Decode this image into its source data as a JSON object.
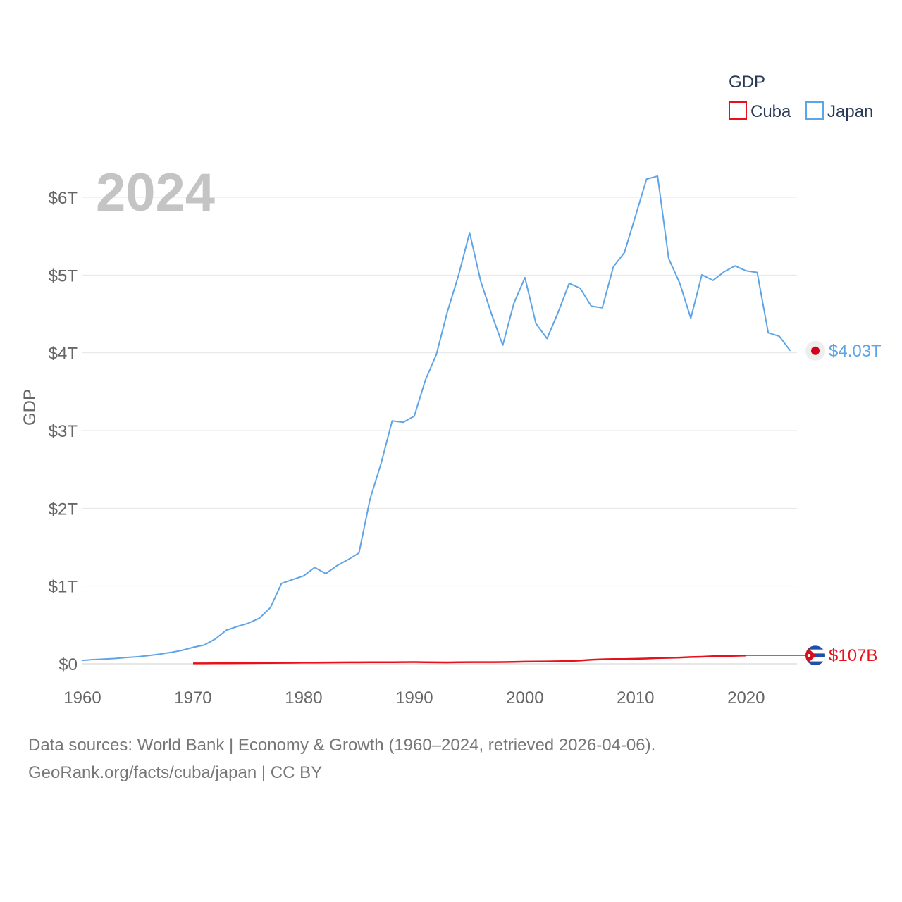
{
  "chart_data": {
    "type": "line",
    "title": "GDP",
    "big_year": "2024",
    "ylabel": "GDP",
    "xlabel": "",
    "xlim": [
      1960,
      2024.6
    ],
    "ylim": [
      0,
      6.3
    ],
    "y_unit": "trillion USD",
    "y_ticks": [
      {
        "value": 0,
        "label": "$0"
      },
      {
        "value": 1,
        "label": "$1T"
      },
      {
        "value": 2,
        "label": "$2T"
      },
      {
        "value": 3,
        "label": "$3T"
      },
      {
        "value": 4,
        "label": "$4T"
      },
      {
        "value": 5,
        "label": "$5T"
      },
      {
        "value": 6,
        "label": "$6T"
      }
    ],
    "x_ticks": [
      {
        "value": 1960,
        "label": "1960"
      },
      {
        "value": 1970,
        "label": "1970"
      },
      {
        "value": 1980,
        "label": "1980"
      },
      {
        "value": 1990,
        "label": "1990"
      },
      {
        "value": 2000,
        "label": "2000"
      },
      {
        "value": 2010,
        "label": "2010"
      },
      {
        "value": 2020,
        "label": "2020"
      }
    ],
    "legend": {
      "title": "GDP",
      "position": "top-right",
      "items": [
        {
          "name": "Cuba",
          "color": "#e8101a"
        },
        {
          "name": "Japan",
          "color": "#5ea4e6"
        }
      ]
    },
    "series": [
      {
        "name": "Japan",
        "color": "#5ea4e6",
        "end_label": "$4.03T",
        "marker_icon": "japan-flag-icon",
        "x": [
          1960,
          1961,
          1962,
          1963,
          1964,
          1965,
          1966,
          1967,
          1968,
          1969,
          1970,
          1971,
          1972,
          1973,
          1974,
          1975,
          1976,
          1977,
          1978,
          1979,
          1980,
          1981,
          1982,
          1983,
          1984,
          1985,
          1986,
          1987,
          1988,
          1989,
          1990,
          1991,
          1992,
          1993,
          1994,
          1995,
          1996,
          1997,
          1998,
          1999,
          2000,
          2001,
          2002,
          2003,
          2004,
          2005,
          2006,
          2007,
          2008,
          2009,
          2010,
          2011,
          2012,
          2013,
          2014,
          2015,
          2016,
          2017,
          2018,
          2019,
          2020,
          2021,
          2022,
          2023,
          2024
        ],
        "values": [
          0.044,
          0.054,
          0.061,
          0.069,
          0.082,
          0.091,
          0.106,
          0.124,
          0.147,
          0.173,
          0.212,
          0.241,
          0.318,
          0.432,
          0.48,
          0.522,
          0.586,
          0.724,
          1.034,
          1.084,
          1.131,
          1.24,
          1.16,
          1.262,
          1.339,
          1.426,
          2.118,
          2.579,
          3.124,
          3.106,
          3.186,
          3.648,
          3.981,
          4.533,
          4.998,
          5.545,
          4.923,
          4.492,
          4.098,
          4.636,
          4.968,
          4.375,
          4.183,
          4.52,
          4.893,
          4.831,
          4.601,
          4.579,
          5.106,
          5.289,
          5.759,
          6.234,
          6.272,
          5.212,
          4.897,
          4.445,
          5.004,
          4.931,
          5.041,
          5.118,
          5.055,
          5.034,
          4.257,
          4.213,
          4.026
        ]
      },
      {
        "name": "Cuba",
        "color": "#e8101a",
        "end_label": "$107B",
        "marker_icon": "cuba-flag-icon",
        "x": [
          1970,
          1971,
          1972,
          1973,
          1974,
          1975,
          1976,
          1977,
          1978,
          1979,
          1980,
          1981,
          1982,
          1983,
          1984,
          1985,
          1986,
          1987,
          1988,
          1989,
          1990,
          1991,
          1992,
          1993,
          1994,
          1995,
          1996,
          1997,
          1998,
          1999,
          2000,
          2001,
          2002,
          2003,
          2004,
          2005,
          2006,
          2007,
          2008,
          2009,
          2010,
          2011,
          2012,
          2013,
          2014,
          2015,
          2016,
          2017,
          2018,
          2019,
          2020
        ],
        "values": [
          0.005,
          0.005,
          0.006,
          0.007,
          0.008,
          0.009,
          0.01,
          0.011,
          0.013,
          0.014,
          0.015,
          0.016,
          0.017,
          0.018,
          0.019,
          0.019,
          0.02,
          0.02,
          0.021,
          0.022,
          0.023,
          0.021,
          0.019,
          0.018,
          0.021,
          0.022,
          0.022,
          0.022,
          0.023,
          0.025,
          0.028,
          0.029,
          0.031,
          0.033,
          0.036,
          0.042,
          0.052,
          0.058,
          0.061,
          0.062,
          0.064,
          0.068,
          0.073,
          0.077,
          0.081,
          0.087,
          0.091,
          0.097,
          0.1,
          0.103,
          0.107
        ],
        "extend_to": 2024.6
      }
    ]
  },
  "footer": {
    "line1": "Data sources: World Bank | Economy & Growth (1960–2024, retrieved 2026-04-06).",
    "line2": "GeoRank.org/facts/cuba/japan | CC BY"
  }
}
